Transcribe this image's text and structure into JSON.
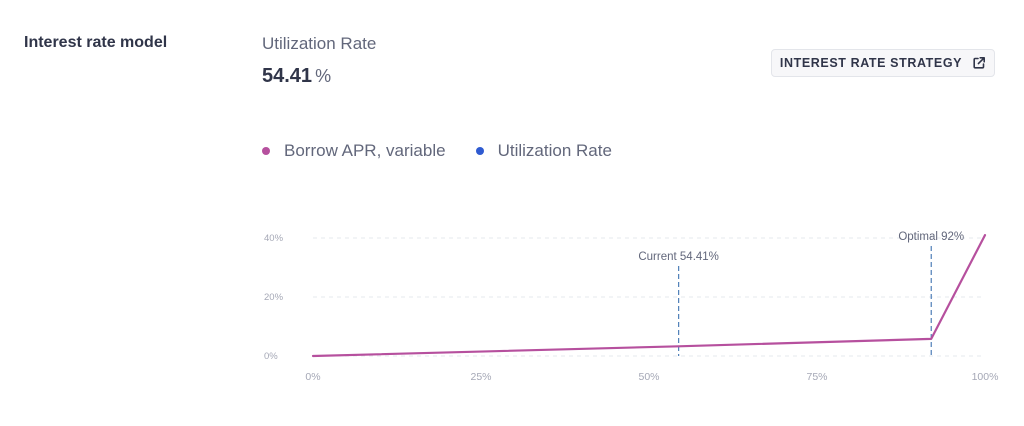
{
  "section": {
    "title": "Interest rate model"
  },
  "metric": {
    "label": "Utilization Rate",
    "value": "54.41",
    "unit": "%"
  },
  "strategy_button": {
    "label": "INTEREST RATE STRATEGY",
    "icon": "external-link-icon"
  },
  "legend": [
    {
      "label": "Borrow APR, variable",
      "color": "#b6509e"
    },
    {
      "label": "Utilization Rate",
      "color": "#2f5bd1"
    }
  ],
  "colors": {
    "borrow_line": "#b6509e",
    "marker_line": "#4f7fb8",
    "grid": "#e6e8ee",
    "tick_text": "#a5a8b6",
    "annotation_text": "#62677b"
  },
  "chart_data": {
    "type": "line",
    "title": "",
    "xlabel": "",
    "ylabel": "",
    "xlim": [
      0,
      100
    ],
    "ylim": [
      0,
      40
    ],
    "grid": true,
    "x_ticks": [
      {
        "value": 0,
        "label": "0%"
      },
      {
        "value": 25,
        "label": "25%"
      },
      {
        "value": 50,
        "label": "50%"
      },
      {
        "value": 75,
        "label": "75%"
      },
      {
        "value": 100,
        "label": "100%"
      }
    ],
    "y_ticks": [
      {
        "value": 0,
        "label": "0%"
      },
      {
        "value": 20,
        "label": "20%"
      },
      {
        "value": 40,
        "label": "40%"
      }
    ],
    "series": [
      {
        "name": "Borrow APR, variable",
        "x": [
          0,
          54.41,
          92,
          100
        ],
        "y": [
          0,
          3.3,
          5.8,
          41
        ]
      }
    ],
    "markers": [
      {
        "x": 54.41,
        "label": "Current 54.41%"
      },
      {
        "x": 92,
        "label": "Optimal 92%"
      }
    ]
  }
}
